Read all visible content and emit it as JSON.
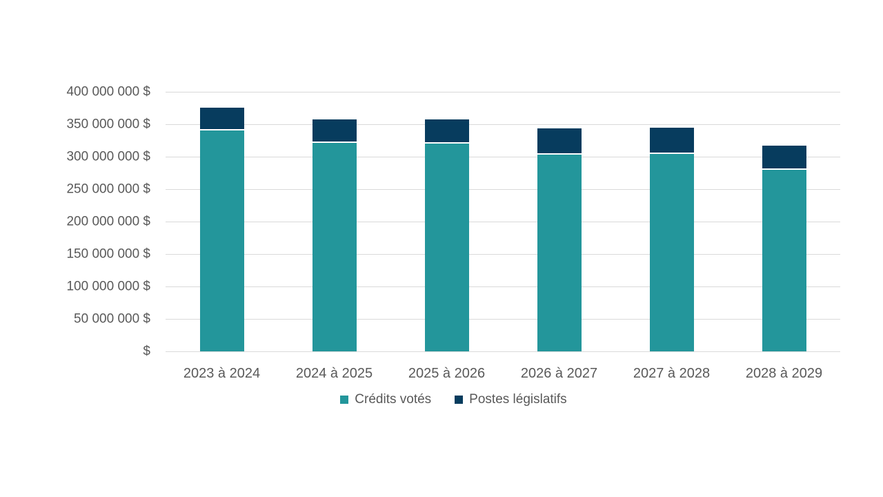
{
  "chart_data": {
    "type": "bar",
    "stacked": true,
    "title": "",
    "xlabel": "",
    "ylabel": "",
    "categories": [
      "2023 à 2024",
      "2024 à 2025",
      "2025 à 2026",
      "2026 à 2027",
      "2027 à 2028",
      "2028 à 2029"
    ],
    "series": [
      {
        "name": "Crédits votés",
        "color": "#23969b",
        "values": [
          340000000,
          321000000,
          320000000,
          303000000,
          304000000,
          280000000
        ]
      },
      {
        "name": "Postes législatifs",
        "color": "#073c5e",
        "values": [
          36000000,
          37000000,
          37000000,
          41000000,
          41000000,
          37000000
        ]
      }
    ],
    "ylim": [
      0,
      400000000
    ],
    "ytick_step": 50000000,
    "ytick_labels": [
      "$",
      "50 000 000 $",
      "100 000 000 $",
      "150 000 000 $",
      "200 000 000 $",
      "250 000 000 $",
      "300 000 000 $",
      "350 000 000 $",
      "400 000 000 $"
    ],
    "grid": true,
    "gridline_color": "#d9d9d9",
    "text_color": "#595959",
    "legend_position": "bottom"
  }
}
